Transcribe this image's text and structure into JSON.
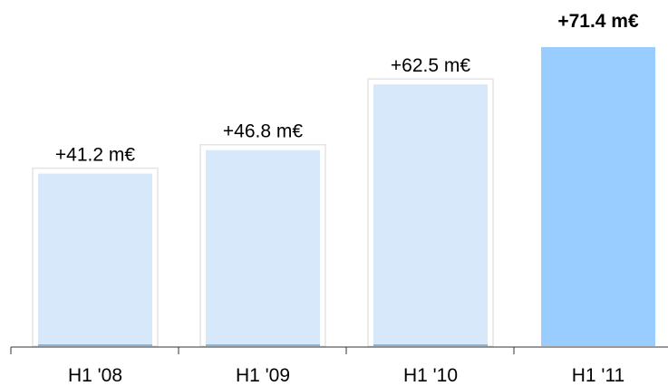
{
  "chart_data": {
    "type": "bar",
    "categories": [
      "H1 '08",
      "H1 '09",
      "H1 '10",
      "H1 '11"
    ],
    "values": [
      41.2,
      46.8,
      62.5,
      71.4
    ],
    "value_labels": [
      "+41.2 m€",
      "+46.8 m€",
      "+62.5 m€",
      "+71.4 m€"
    ],
    "highlight_index": 3,
    "unit": "m€",
    "title": "",
    "xlabel": "",
    "ylabel": "",
    "ylim": [
      0,
      71.4
    ],
    "grid": false,
    "legend": "none",
    "colors": {
      "bar": "#d6e8fa",
      "bar_highlight": "#99ccff",
      "bar_outline": "#e4e4e4",
      "bar_base": "#8fb3d3",
      "axis": "#333333"
    }
  }
}
